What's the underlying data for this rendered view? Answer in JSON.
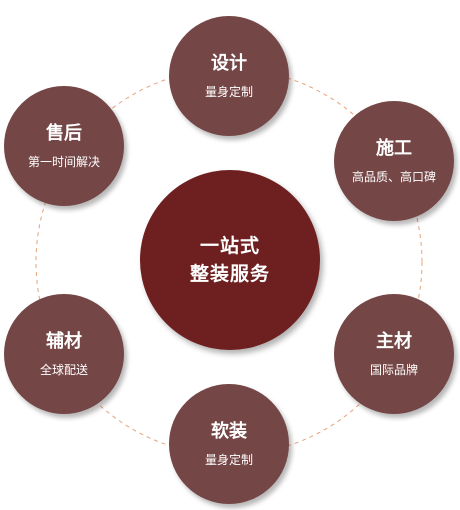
{
  "center": {
    "line1": "一站式",
    "line2": "整装服务"
  },
  "nodes": {
    "design": {
      "title": "设计",
      "sub": "量身定制"
    },
    "construction": {
      "title": "施工",
      "sub": "高品质、高口碑"
    },
    "main_material": {
      "title": "主材",
      "sub": "国际品牌"
    },
    "soft_decor": {
      "title": "软装",
      "sub": "量身定制"
    },
    "auxiliary": {
      "title": "辅材",
      "sub": "全球配送"
    },
    "after_sales": {
      "title": "售后",
      "sub": "第一时间解决"
    }
  },
  "colors": {
    "node": "#754646",
    "center": "#6e1f1f",
    "ring": "#e7a27a"
  }
}
